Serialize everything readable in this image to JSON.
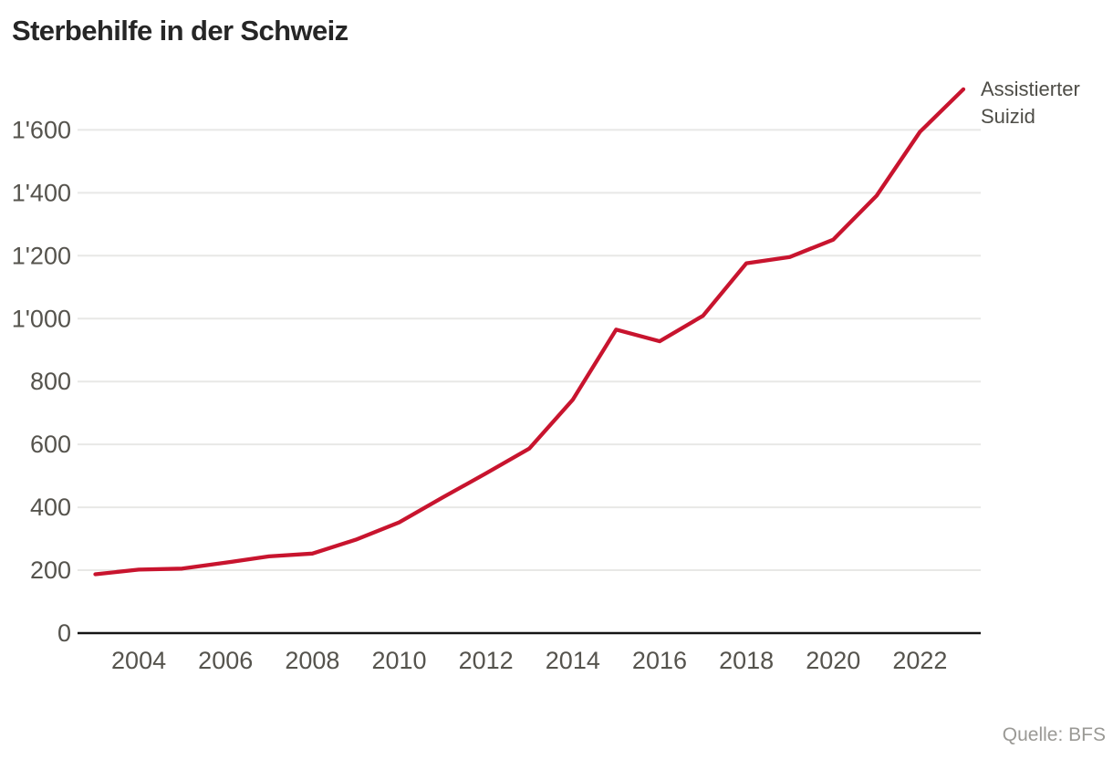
{
  "page": {
    "title": "Sterbehilfe in der Schweiz",
    "source_note": "Quelle: BFS"
  },
  "colors": {
    "background": "#ffffff",
    "line": "#c8142e",
    "grid": "#e8e8e6",
    "axis": "#141414",
    "tick_label": "#55534d",
    "legend_text": "#4e4d47",
    "title_text": "#262626",
    "source_text": "#9a9995"
  },
  "chart_data": {
    "type": "line",
    "title": "Sterbehilfe in der Schweiz",
    "source": "Quelle: BFS",
    "xlabel": "",
    "ylabel": "",
    "x": [
      2003,
      2004,
      2005,
      2006,
      2007,
      2008,
      2009,
      2010,
      2011,
      2012,
      2013,
      2014,
      2015,
      2016,
      2017,
      2018,
      2019,
      2020,
      2021,
      2022,
      2023
    ],
    "series": [
      {
        "name": "Assistierter Suizid",
        "color": "#c8142e",
        "values": [
          187,
          202,
          205,
          224,
          244,
          253,
          297,
          352,
          431,
          508,
          587,
          742,
          965,
          928,
          1009,
          1176,
          1196,
          1251,
          1391,
          1594,
          1729
        ]
      }
    ],
    "xlim": [
      2003,
      2023
    ],
    "ylim": [
      0,
      1740
    ],
    "yticks": [
      0,
      200,
      400,
      600,
      800,
      1000,
      1200,
      1400,
      1600
    ],
    "ytick_labels": [
      "0",
      "200",
      "400",
      "600",
      "800",
      "1'000",
      "1'200",
      "1'400",
      "1'600"
    ],
    "xticks": [
      2004,
      2006,
      2008,
      2010,
      2012,
      2014,
      2016,
      2018,
      2020,
      2022
    ],
    "grid": "horizontal",
    "legend_position": "right-of-line-end"
  }
}
